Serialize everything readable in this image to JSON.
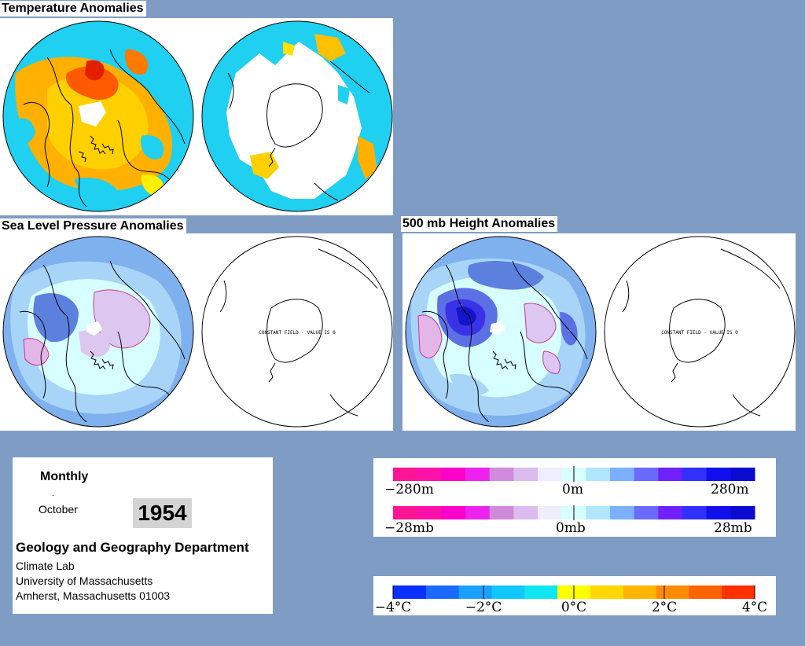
{
  "sections": {
    "temperature_title": "Temperature Anomalies",
    "slp_title": "Sea Level Pressure Anomalies",
    "height_title": "500 mb Height Anomalies"
  },
  "maps": {
    "constant_field_label": "CONSTANT FIELD - VALUE IS 0"
  },
  "info": {
    "period_type": "Monthly",
    "month": "October",
    "year": "1954",
    "department": "Geology and Geography Department",
    "lab": "Climate Lab",
    "university": "University of Massachusetts",
    "address": "Amherst, Massachusetts 01003"
  },
  "legends": {
    "height": {
      "min": "−280m",
      "mid": "0m",
      "max": "280m",
      "colors": [
        "#ff1493",
        "#ff10a8",
        "#ff00cc",
        "#ee22ee",
        "#d08adc",
        "#dcbbee",
        "#eeeeff",
        "#d7ffff",
        "#b0e6ff",
        "#7ab0ff",
        "#6a6aff",
        "#7020ff",
        "#3030ff",
        "#1010ee",
        "#0a0ad0"
      ]
    },
    "pressure": {
      "min": "−28mb",
      "mid": "0mb",
      "max": "28mb",
      "colors": [
        "#ff1493",
        "#ff10a8",
        "#ff00cc",
        "#ee22ee",
        "#d08adc",
        "#dcbbee",
        "#eeeeff",
        "#d7ffff",
        "#b0e6ff",
        "#7ab0ff",
        "#6a6aff",
        "#7020ff",
        "#3030ff",
        "#1010ee",
        "#0a0ad0"
      ]
    },
    "temperature": {
      "labels": [
        "−4°C",
        "−2°C",
        "0°C",
        "2°C",
        "4°C"
      ],
      "colors": [
        "#0a30ff",
        "#1a6aff",
        "#1aa0ff",
        "#10c8ff",
        "#10e6f2",
        "#ffff00",
        "#ffd800",
        "#ffb400",
        "#ff8c00",
        "#ff6400",
        "#ff3000"
      ]
    }
  },
  "colors": {
    "background": "#7f9cc4",
    "temp_warm": "#ff9900",
    "temp_hot": "#ee2200",
    "temp_cool": "#22ccee",
    "slp_low": "#5a7fd9",
    "slp_mid": "#b3d8f5",
    "slp_high": "#d9c9ee"
  }
}
